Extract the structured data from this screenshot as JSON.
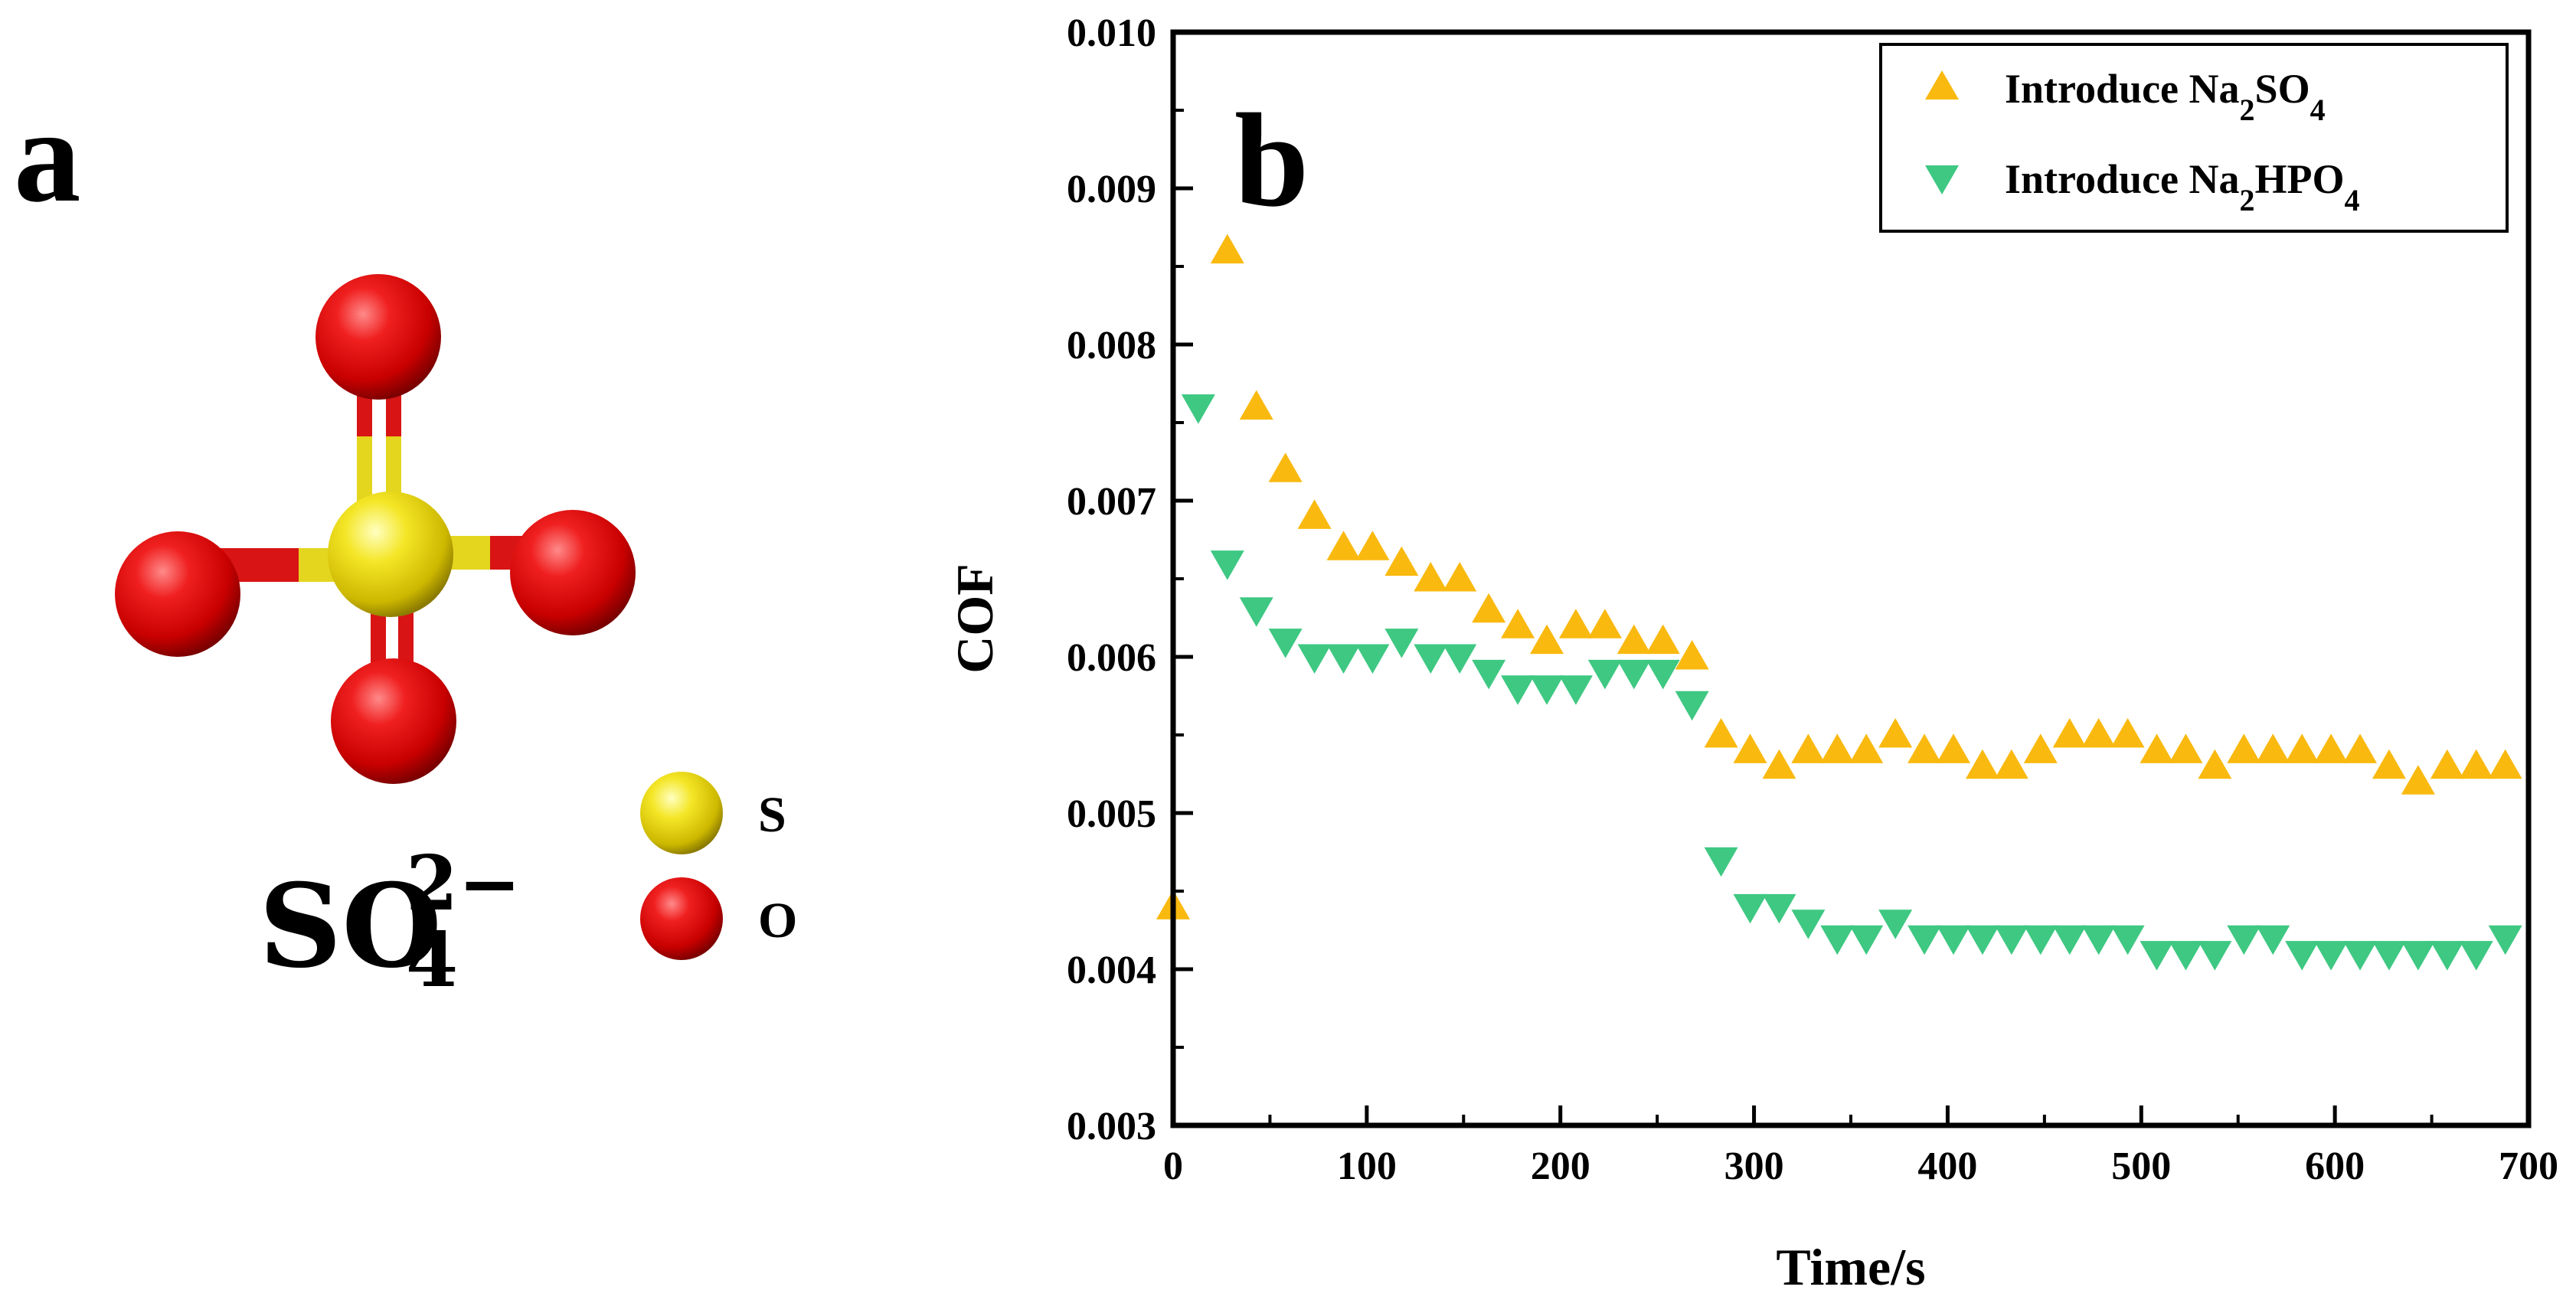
{
  "panels": {
    "a": {
      "letter": "a",
      "formula": {
        "base": "SO",
        "sub": "4",
        "sup": "2−"
      },
      "legend": [
        {
          "element": "S",
          "label": "S",
          "color": "#f2e01a"
        },
        {
          "element": "O",
          "label": "O",
          "color": "#e01010"
        }
      ]
    },
    "b": {
      "letter": "b"
    }
  },
  "chart_data": {
    "type": "scatter",
    "title": "",
    "xlabel": "Time/s",
    "ylabel": "COF",
    "xlim": [
      0,
      700
    ],
    "ylim": [
      0.003,
      0.01
    ],
    "xticks": [
      {
        "value": 0,
        "label": "0"
      },
      {
        "value": 100,
        "label": "100"
      },
      {
        "value": 200,
        "label": "200"
      },
      {
        "value": 300,
        "label": "300"
      },
      {
        "value": 400,
        "label": "400"
      },
      {
        "value": 500,
        "label": "500"
      },
      {
        "value": 600,
        "label": "600"
      },
      {
        "value": 700,
        "label": "700"
      }
    ],
    "yticks": [
      {
        "value": 0.003,
        "label": "0.003"
      },
      {
        "value": 0.004,
        "label": "0.004"
      },
      {
        "value": 0.005,
        "label": "0.005"
      },
      {
        "value": 0.006,
        "label": "0.006"
      },
      {
        "value": 0.007,
        "label": "0.007"
      },
      {
        "value": 0.008,
        "label": "0.008"
      },
      {
        "value": 0.009,
        "label": "0.009"
      },
      {
        "value": 0.01,
        "label": "0.010"
      }
    ],
    "legend_position": "top-right",
    "series": [
      {
        "name": "Introduce Na2SO4",
        "label_parts": [
          [
            "Introduce Na",
            false
          ],
          [
            "2",
            true
          ],
          [
            "SO",
            false
          ],
          [
            "4",
            true
          ]
        ],
        "marker": "triangle-up",
        "color": "#f9b90f",
        "x": [
          0,
          28,
          43,
          58,
          73,
          88,
          103,
          118,
          133,
          148,
          163,
          178,
          193,
          208,
          223,
          238,
          253,
          268,
          283,
          298,
          313,
          328,
          343,
          358,
          373,
          388,
          403,
          418,
          433,
          448,
          463,
          478,
          493,
          508,
          523,
          538,
          553,
          568,
          583,
          598,
          613,
          628,
          643,
          658,
          673,
          688
        ],
        "y": [
          0.0044,
          0.0086,
          0.0076,
          0.0072,
          0.0069,
          0.0067,
          0.0067,
          0.0066,
          0.0065,
          0.0065,
          0.0063,
          0.0062,
          0.0061,
          0.0062,
          0.0062,
          0.0061,
          0.0061,
          0.006,
          0.0055,
          0.0054,
          0.0053,
          0.0054,
          0.0054,
          0.0054,
          0.0055,
          0.0054,
          0.0054,
          0.0053,
          0.0053,
          0.0054,
          0.0055,
          0.0055,
          0.0055,
          0.0054,
          0.0054,
          0.0053,
          0.0054,
          0.0054,
          0.0054,
          0.0054,
          0.0054,
          0.0053,
          0.0052,
          0.0053,
          0.0053,
          0.0053
        ]
      },
      {
        "name": "Introduce Na2HPO4",
        "label_parts": [
          [
            "Introduce Na",
            false
          ],
          [
            "2",
            true
          ],
          [
            "HPO",
            false
          ],
          [
            "4",
            true
          ]
        ],
        "marker": "triangle-down",
        "color": "#3ec882",
        "x": [
          13,
          28,
          43,
          58,
          73,
          88,
          103,
          118,
          133,
          148,
          163,
          178,
          193,
          208,
          223,
          238,
          253,
          268,
          283,
          298,
          313,
          328,
          343,
          358,
          373,
          388,
          403,
          418,
          433,
          448,
          463,
          478,
          493,
          508,
          523,
          538,
          553,
          568,
          583,
          598,
          613,
          628,
          643,
          658,
          673,
          688
        ],
        "y": [
          0.0076,
          0.0066,
          0.0063,
          0.0061,
          0.006,
          0.006,
          0.006,
          0.0061,
          0.006,
          0.006,
          0.0059,
          0.0058,
          0.0058,
          0.0058,
          0.0059,
          0.0059,
          0.0059,
          0.0057,
          0.0047,
          0.0044,
          0.0044,
          0.0043,
          0.0042,
          0.0042,
          0.0043,
          0.0042,
          0.0042,
          0.0042,
          0.0042,
          0.0042,
          0.0042,
          0.0042,
          0.0042,
          0.0041,
          0.0041,
          0.0041,
          0.0042,
          0.0042,
          0.0041,
          0.0041,
          0.0041,
          0.0041,
          0.0041,
          0.0041,
          0.0041,
          0.0042
        ]
      }
    ]
  }
}
